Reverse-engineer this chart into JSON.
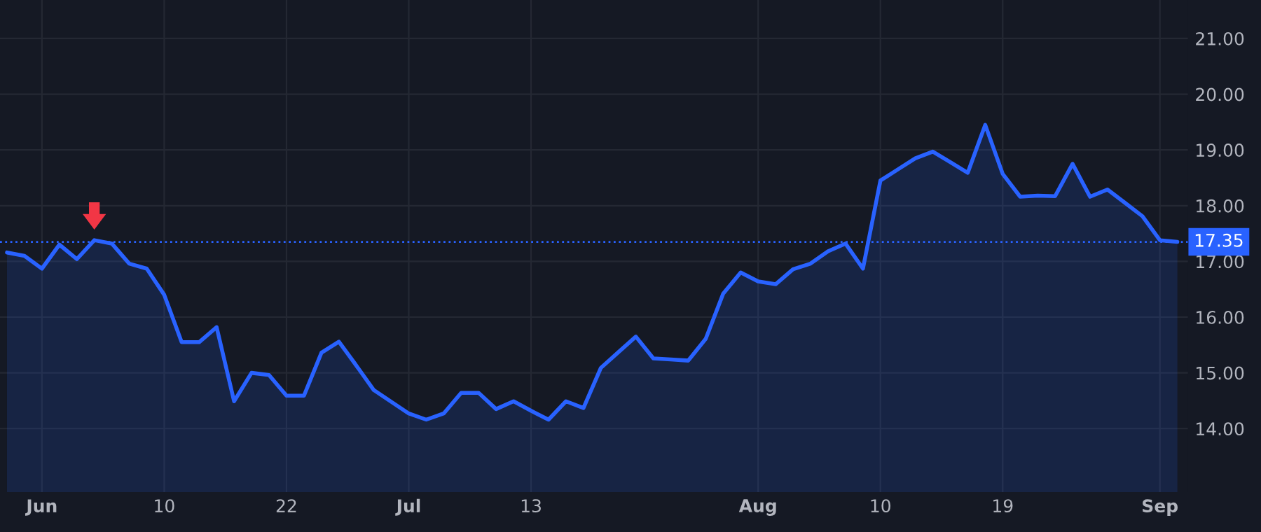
{
  "chart_data": {
    "type": "area",
    "categories": [
      null,
      null,
      "Jun",
      null,
      null,
      null,
      null,
      null,
      null,
      "10",
      null,
      null,
      null,
      null,
      null,
      null,
      "22",
      null,
      null,
      null,
      null,
      null,
      null,
      "Jul",
      null,
      null,
      null,
      null,
      null,
      null,
      "13",
      null,
      null,
      null,
      null,
      null,
      null,
      null,
      null,
      null,
      null,
      null,
      null,
      "Aug",
      null,
      null,
      null,
      null,
      null,
      null,
      "10",
      null,
      null,
      null,
      null,
      null,
      null,
      "19",
      null,
      null,
      null,
      null,
      null,
      null,
      null,
      null,
      "Sep",
      null
    ],
    "series": [
      {
        "color": "#2962ff",
        "values": [
          17.16,
          17.1,
          16.87,
          17.3,
          17.04,
          17.38,
          17.32,
          16.96,
          16.87,
          16.4,
          15.55,
          15.55,
          15.82,
          14.49,
          15.0,
          14.96,
          14.59,
          14.59,
          15.36,
          15.56,
          15.13,
          14.69,
          14.48,
          14.27,
          14.16,
          14.27,
          14.64,
          14.64,
          14.35,
          14.49,
          14.32,
          14.16,
          14.49,
          14.37,
          15.09,
          15.37,
          15.65,
          15.26,
          15.24,
          15.22,
          15.61,
          16.42,
          16.8,
          16.64,
          16.59,
          16.86,
          16.96,
          17.18,
          17.32,
          16.87,
          18.45,
          18.65,
          18.85,
          18.97,
          18.78,
          18.59,
          19.45,
          18.57,
          18.16,
          18.18,
          18.17,
          18.75,
          18.16,
          18.29,
          18.05,
          17.81,
          17.38,
          17.35
        ]
      }
    ],
    "ylim": [
      12.86,
      21.69
    ],
    "yticks": [
      {
        "value": 14,
        "label": "14.00"
      },
      {
        "value": 15,
        "label": "15.00"
      },
      {
        "value": 16,
        "label": "16.00"
      },
      {
        "value": 17,
        "label": "17.00"
      },
      {
        "value": 18,
        "label": "18.00"
      },
      {
        "value": 19,
        "label": "19.00"
      },
      {
        "value": 20,
        "label": "20.00"
      },
      {
        "value": 21,
        "label": "21.00"
      }
    ],
    "ref_lines": [
      {
        "axis": "y",
        "value": 17.35,
        "label": "17.35",
        "color": "#2962ff",
        "line_style": "dotted"
      }
    ],
    "grid": true,
    "legend": false
  }
}
